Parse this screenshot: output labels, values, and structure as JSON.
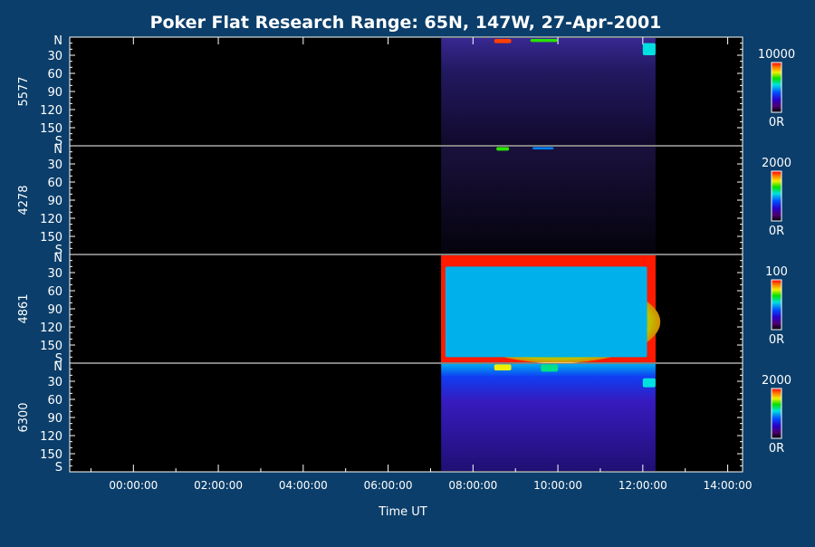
{
  "chart_data": {
    "type": "heatmap",
    "title": "Poker Flat Research Range: 65N, 147W, 27-Apr-2001",
    "xlabel": "Time UT",
    "x_ticks": [
      "00:00:00",
      "02:00:00",
      "04:00:00",
      "06:00:00",
      "08:00:00",
      "10:00:00",
      "12:00:00",
      "14:00:00"
    ],
    "x_range_hours": [
      -1.5,
      14.35
    ],
    "y_ticks": [
      "N",
      "30",
      "60",
      "90",
      "120",
      "150",
      "S"
    ],
    "y_range_deg": [
      0,
      180
    ],
    "data_window_hours": [
      7.25,
      12.3
    ],
    "panels": [
      {
        "name": "5577",
        "colorbar": {
          "max": "10000",
          "min": "0R"
        },
        "features": [
          {
            "t": [
              8.5,
              8.9
            ],
            "deg": [
              3,
              10
            ],
            "level": 0.95
          },
          {
            "t": [
              9.35,
              10.0
            ],
            "deg": [
              3,
              8
            ],
            "level": 0.7
          },
          {
            "t": [
              12.0,
              12.3
            ],
            "deg": [
              10,
              30
            ],
            "level": 0.55
          }
        ]
      },
      {
        "name": "4278",
        "colorbar": {
          "max": "2000",
          "min": "0R"
        },
        "features": [
          {
            "t": [
              8.55,
              8.85
            ],
            "deg": [
              2,
              8
            ],
            "level": 0.7
          },
          {
            "t": [
              9.4,
              9.9
            ],
            "deg": [
              2,
              6
            ],
            "level": 0.45
          }
        ]
      },
      {
        "name": "4861",
        "colorbar": {
          "max": "100",
          "min": "0R"
        },
        "features": [
          {
            "t": [
              7.35,
              12.1
            ],
            "deg": [
              20,
              170
            ],
            "level": 0.5
          }
        ]
      },
      {
        "name": "6300",
        "colorbar": {
          "max": "2000",
          "min": "0R"
        },
        "features": [
          {
            "t": [
              8.5,
              8.9
            ],
            "deg": [
              2,
              12
            ],
            "level": 0.8
          },
          {
            "t": [
              9.6,
              10.0
            ],
            "deg": [
              2,
              14
            ],
            "level": 0.6
          },
          {
            "t": [
              12.0,
              12.3
            ],
            "deg": [
              25,
              40
            ],
            "level": 0.55
          }
        ]
      }
    ]
  }
}
